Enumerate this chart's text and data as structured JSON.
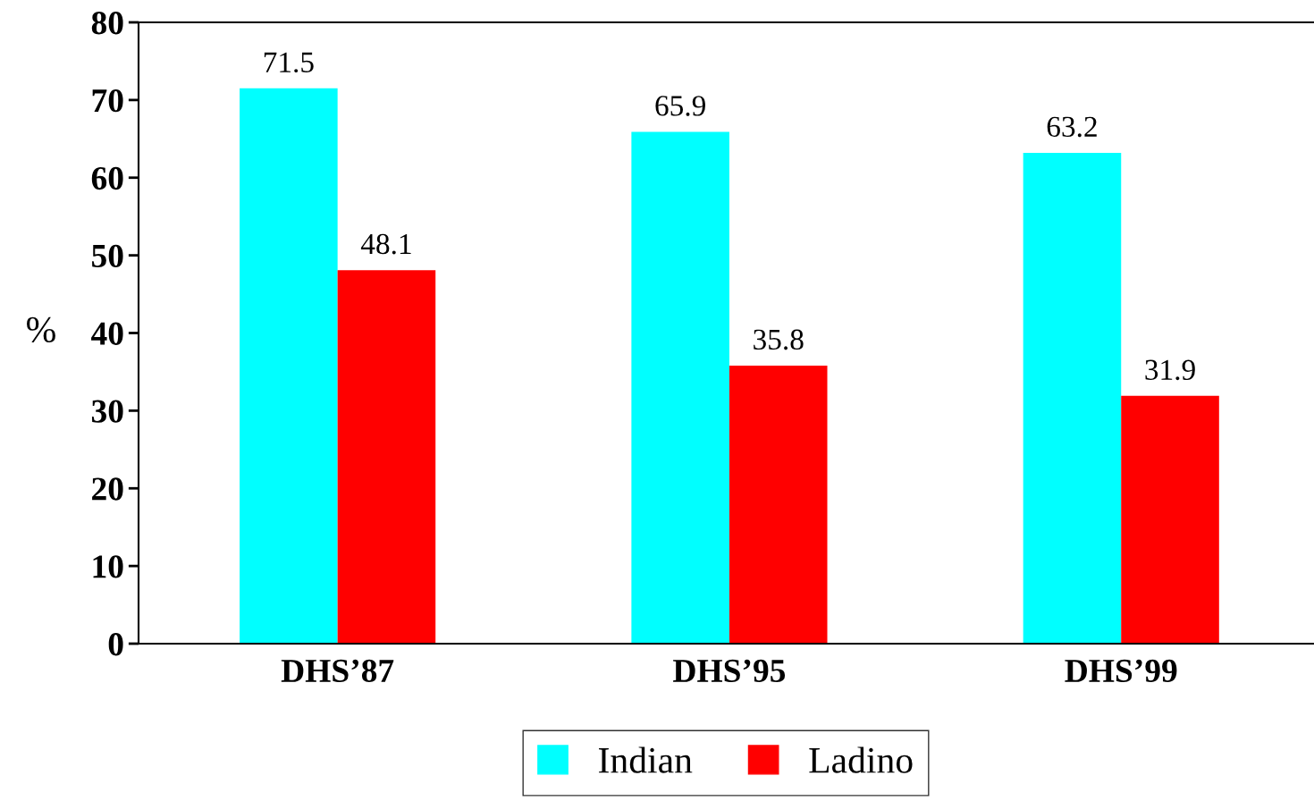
{
  "chart_data": {
    "type": "bar",
    "ylabel": "%",
    "categories": [
      "DHS’87",
      "DHS’95",
      "DHS’99"
    ],
    "series": [
      {
        "name": "Indian",
        "color": "#00ffff",
        "values": [
          71.5,
          65.9,
          63.2
        ]
      },
      {
        "name": "Ladino",
        "color": "#ff0000",
        "values": [
          48.1,
          35.8,
          31.9
        ]
      }
    ],
    "ylim": [
      0,
      80
    ],
    "yticks": [
      0,
      10,
      20,
      30,
      40,
      50,
      60,
      70,
      80
    ],
    "data_labels": true,
    "grid": false,
    "legend": "bottom"
  }
}
